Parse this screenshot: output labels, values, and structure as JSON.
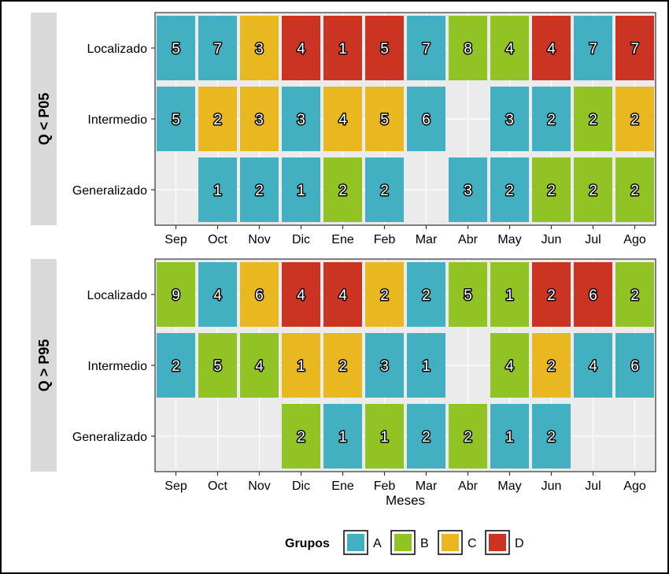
{
  "chart_data": {
    "type": "heatmap",
    "xlabel": "Meses",
    "months": [
      "Sep",
      "Oct",
      "Nov",
      "Dic",
      "Ene",
      "Feb",
      "Mar",
      "Abr",
      "May",
      "Jun",
      "Jul",
      "Ago"
    ],
    "rows": [
      "Localizado",
      "Intermedio",
      "Generalizado"
    ],
    "group_colors": {
      "A": "#42b0c1",
      "B": "#90c323",
      "C": "#e9b820",
      "D": "#cb3422"
    },
    "legend": {
      "title": "Grupos",
      "entries": [
        "A",
        "B",
        "C",
        "D"
      ]
    },
    "empty_color": "#ebebeb",
    "panels": [
      {
        "strip": "Q < P05",
        "cells": {
          "Localizado": [
            [
              "A",
              5
            ],
            [
              "A",
              7
            ],
            [
              "C",
              3
            ],
            [
              "D",
              4
            ],
            [
              "D",
              1
            ],
            [
              "D",
              5
            ],
            [
              "A",
              7
            ],
            [
              "B",
              8
            ],
            [
              "B",
              4
            ],
            [
              "D",
              4
            ],
            [
              "A",
              7
            ],
            [
              "D",
              7
            ]
          ],
          "Intermedio": [
            [
              "A",
              5
            ],
            [
              "C",
              2
            ],
            [
              "C",
              3
            ],
            [
              "A",
              3
            ],
            [
              "C",
              4
            ],
            [
              "C",
              5
            ],
            [
              "A",
              6
            ],
            null,
            [
              "A",
              3
            ],
            [
              "A",
              2
            ],
            [
              "B",
              2
            ],
            [
              "C",
              2
            ]
          ],
          "Generalizado": [
            null,
            [
              "A",
              1
            ],
            [
              "A",
              2
            ],
            [
              "A",
              1
            ],
            [
              "B",
              2
            ],
            [
              "A",
              2
            ],
            null,
            [
              "A",
              3
            ],
            [
              "A",
              2
            ],
            [
              "B",
              2
            ],
            [
              "B",
              2
            ],
            [
              "B",
              2
            ]
          ]
        }
      },
      {
        "strip": "Q > P95",
        "cells": {
          "Localizado": [
            [
              "B",
              9
            ],
            [
              "A",
              4
            ],
            [
              "C",
              6
            ],
            [
              "D",
              4
            ],
            [
              "D",
              4
            ],
            [
              "C",
              2
            ],
            [
              "A",
              2
            ],
            [
              "B",
              5
            ],
            [
              "B",
              1
            ],
            [
              "D",
              2
            ],
            [
              "D",
              6
            ],
            [
              "B",
              2
            ]
          ],
          "Intermedio": [
            [
              "A",
              2
            ],
            [
              "B",
              5
            ],
            [
              "B",
              4
            ],
            [
              "C",
              1
            ],
            [
              "C",
              2
            ],
            [
              "A",
              3
            ],
            [
              "A",
              1
            ],
            null,
            [
              "B",
              4
            ],
            [
              "C",
              2
            ],
            [
              "A",
              4
            ],
            [
              "A",
              6
            ]
          ],
          "Generalizado": [
            null,
            null,
            null,
            [
              "B",
              2
            ],
            [
              "A",
              1
            ],
            [
              "B",
              1
            ],
            [
              "A",
              2
            ],
            [
              "B",
              2
            ],
            [
              "A",
              1
            ],
            [
              "A",
              2
            ],
            null,
            null
          ]
        }
      }
    ]
  }
}
